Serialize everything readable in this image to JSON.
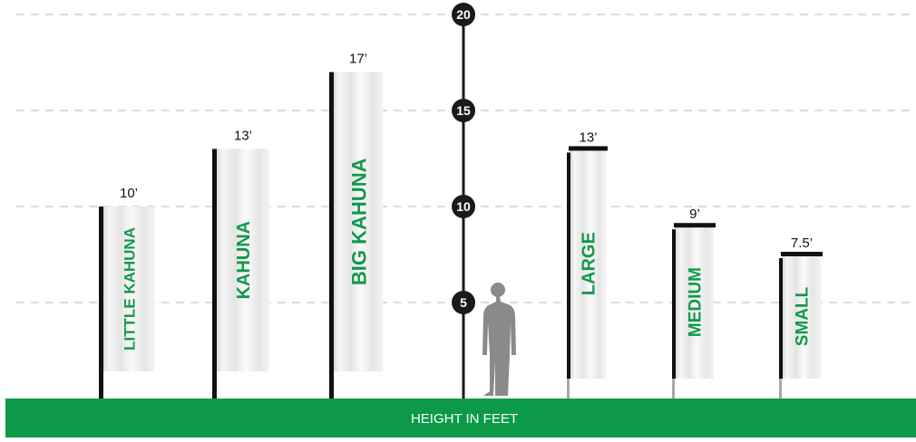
{
  "scale": {
    "ticks": [
      {
        "value": 5,
        "label": "5"
      },
      {
        "value": 10,
        "label": "10"
      },
      {
        "value": 15,
        "label": "15"
      },
      {
        "value": 20,
        "label": "20"
      }
    ]
  },
  "flags": [
    {
      "name": "LITTLE KAHUNA",
      "height_label": "10’",
      "height_ft": 10,
      "style": "pole"
    },
    {
      "name": "KAHUNA",
      "height_label": "13’",
      "height_ft": 13,
      "style": "pole"
    },
    {
      "name": "BIG KAHUNA",
      "height_label": "17’",
      "height_ft": 17,
      "style": "pole"
    },
    {
      "name": "LARGE",
      "height_label": "13’",
      "height_ft": 13,
      "style": "crossbar"
    },
    {
      "name": "MEDIUM",
      "height_label": "9’",
      "height_ft": 9,
      "style": "crossbar"
    },
    {
      "name": "SMALL",
      "height_label": "7.5’",
      "height_ft": 7.5,
      "style": "crossbar"
    }
  ],
  "footer": {
    "label": "HEIGHT IN FEET"
  },
  "colors": {
    "ground": "#0c9a48",
    "flag_text": "#11994a",
    "scale": "#1a1a1a",
    "person": "#8a8a8a",
    "gridline": "#c8c8c8"
  }
}
